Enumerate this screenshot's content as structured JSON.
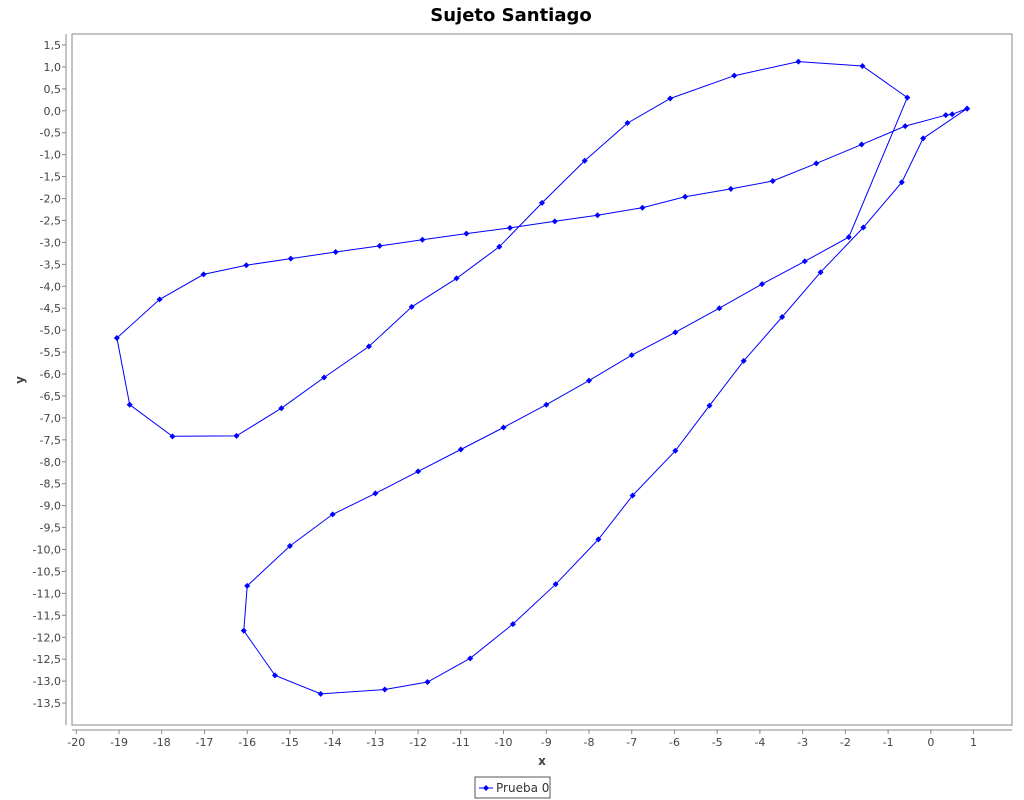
{
  "chart_data": {
    "type": "line",
    "title": "Sujeto Santiago",
    "xlabel": "x",
    "ylabel": "y",
    "xlim": [
      -20.1,
      1.9
    ],
    "ylim": [
      -14.0,
      1.75
    ],
    "x_ticks": [
      -20,
      -19,
      -18,
      -17,
      -16,
      -15,
      -14,
      -13,
      -12,
      -11,
      -10,
      -9,
      -8,
      -7,
      -6,
      -5,
      -4,
      -3,
      -2,
      -1,
      0,
      1
    ],
    "y_ticks": [
      1.5,
      1.0,
      0.5,
      0.0,
      -0.5,
      -1.0,
      -1.5,
      -2.0,
      -2.5,
      -3.0,
      -3.5,
      -4.0,
      -4.5,
      -5.0,
      -5.5,
      -6.0,
      -6.5,
      -7.0,
      -7.5,
      -8.0,
      -8.5,
      -9.0,
      -9.5,
      -10.0,
      -10.5,
      -11.0,
      -11.5,
      -12.0,
      -12.5,
      -13.0,
      -13.5
    ],
    "decimal_separator": ",",
    "grid": false,
    "legend_position": "bottom-center",
    "series": [
      {
        "name": "Prueba 0",
        "color": "#0000ff",
        "points": [
          [
            0.85,
            0.05
          ],
          [
            0.5,
            -0.08
          ],
          [
            0.35,
            -0.1
          ],
          [
            -0.6,
            -0.35
          ],
          [
            -1.62,
            -0.77
          ],
          [
            -2.68,
            -1.2
          ],
          [
            -3.7,
            -1.6
          ],
          [
            -4.68,
            -1.78
          ],
          [
            -5.75,
            -1.96
          ],
          [
            -6.75,
            -2.21
          ],
          [
            -7.8,
            -2.38
          ],
          [
            -8.8,
            -2.52
          ],
          [
            -9.85,
            -2.67
          ],
          [
            -10.87,
            -2.8
          ],
          [
            -11.9,
            -2.94
          ],
          [
            -12.9,
            -3.08
          ],
          [
            -13.93,
            -3.22
          ],
          [
            -14.98,
            -3.37
          ],
          [
            -16.02,
            -3.52
          ],
          [
            -17.02,
            -3.73
          ],
          [
            -18.05,
            -4.3
          ],
          [
            -19.05,
            -5.18
          ],
          [
            -18.75,
            -6.7
          ],
          [
            -17.75,
            -7.42
          ],
          [
            -16.25,
            -7.41
          ],
          [
            -15.2,
            -6.78
          ],
          [
            -14.2,
            -6.08
          ],
          [
            -13.15,
            -5.37
          ],
          [
            -12.15,
            -4.47
          ],
          [
            -11.1,
            -3.82
          ],
          [
            -10.1,
            -3.1
          ],
          [
            -9.1,
            -2.1
          ],
          [
            -8.1,
            -1.14
          ],
          [
            -7.1,
            -0.28
          ],
          [
            -6.1,
            0.28
          ],
          [
            -4.6,
            0.8
          ],
          [
            -3.1,
            1.12
          ],
          [
            -1.6,
            1.02
          ],
          [
            -0.55,
            0.3
          ],
          [
            -1.92,
            -2.88
          ],
          [
            -2.95,
            -3.43
          ],
          [
            -3.95,
            -3.95
          ],
          [
            -4.95,
            -4.5
          ],
          [
            -5.98,
            -5.05
          ],
          [
            -7.0,
            -5.57
          ],
          [
            -8.0,
            -6.15
          ],
          [
            -9.0,
            -6.7
          ],
          [
            -10.0,
            -7.22
          ],
          [
            -11.0,
            -7.72
          ],
          [
            -12.0,
            -8.22
          ],
          [
            -13.0,
            -8.72
          ],
          [
            -14.0,
            -9.2
          ],
          [
            -15.0,
            -9.92
          ],
          [
            -16.0,
            -10.83
          ],
          [
            -16.08,
            -11.85
          ],
          [
            -15.35,
            -12.87
          ],
          [
            -14.28,
            -13.29
          ],
          [
            -12.78,
            -13.19
          ],
          [
            -11.78,
            -13.02
          ],
          [
            -10.78,
            -12.48
          ],
          [
            -9.78,
            -11.7
          ],
          [
            -8.78,
            -10.79
          ],
          [
            -7.78,
            -9.77
          ],
          [
            -6.98,
            -8.77
          ],
          [
            -5.98,
            -7.75
          ],
          [
            -5.18,
            -6.72
          ],
          [
            -4.38,
            -5.7
          ],
          [
            -3.48,
            -4.7
          ],
          [
            -2.58,
            -3.68
          ],
          [
            -1.58,
            -2.66
          ],
          [
            -0.68,
            -1.63
          ],
          [
            -0.18,
            -0.63
          ],
          [
            0.85,
            0.05
          ]
        ]
      }
    ]
  }
}
